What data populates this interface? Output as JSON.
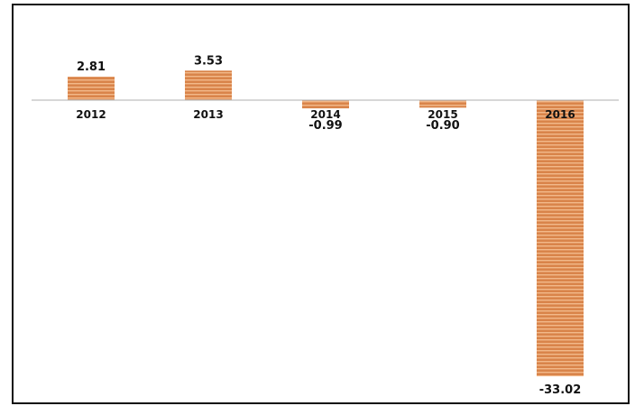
{
  "chart_data": {
    "type": "bar",
    "categories": [
      "2012",
      "2013",
      "2014",
      "2015",
      "2016"
    ],
    "values": [
      2.81,
      3.53,
      -0.99,
      -0.9,
      -33.02
    ],
    "value_labels": [
      "2.81",
      "3.53",
      "-0.99",
      "-0.90",
      "-33.02"
    ],
    "title": "",
    "xlabel": "",
    "ylabel": "",
    "grid": false,
    "legend": "none",
    "bar_color": "#d9844a",
    "bar_stripe_color": "#f2b98a",
    "axis_color": "#bfbfbf"
  }
}
